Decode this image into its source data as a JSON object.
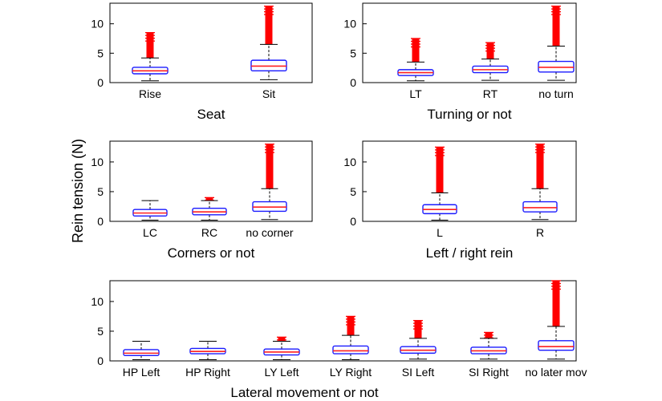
{
  "figure": {
    "ylabel": "Rein tension (N)"
  },
  "chart_data": [
    {
      "type": "box",
      "xlabel": "Seat",
      "ylim": [
        0,
        13.5
      ],
      "yticks": [
        0,
        5,
        10
      ],
      "categories": [
        "Rise",
        "Sit"
      ],
      "boxes": [
        {
          "q1": 1.5,
          "median": 2.0,
          "q3": 2.6,
          "whisker_low": 0.3,
          "whisker_high": 4.2,
          "outlier_max": 8.5
        },
        {
          "q1": 2.0,
          "median": 2.8,
          "q3": 3.8,
          "whisker_low": 0.5,
          "whisker_high": 6.5,
          "outlier_max": 13.0
        }
      ]
    },
    {
      "type": "box",
      "xlabel": "Turning or not",
      "ylim": [
        0,
        13.5
      ],
      "yticks": [
        0,
        5,
        10
      ],
      "categories": [
        "LT",
        "RT",
        "no turn"
      ],
      "boxes": [
        {
          "q1": 1.2,
          "median": 1.7,
          "q3": 2.2,
          "whisker_low": 0.3,
          "whisker_high": 3.5,
          "outlier_max": 7.5
        },
        {
          "q1": 1.7,
          "median": 2.2,
          "q3": 2.8,
          "whisker_low": 0.4,
          "whisker_high": 4.0,
          "outlier_max": 6.8
        },
        {
          "q1": 1.8,
          "median": 2.6,
          "q3": 3.6,
          "whisker_low": 0.4,
          "whisker_high": 6.2,
          "outlier_max": 13.0
        }
      ]
    },
    {
      "type": "box",
      "xlabel": "Corners or not",
      "ylim": [
        0,
        13.5
      ],
      "yticks": [
        0,
        5,
        10
      ],
      "categories": [
        "LC",
        "RC",
        "no corner"
      ],
      "boxes": [
        {
          "q1": 0.9,
          "median": 1.4,
          "q3": 2.0,
          "whisker_low": 0.2,
          "whisker_high": 3.5,
          "outlier_max": null
        },
        {
          "q1": 1.1,
          "median": 1.6,
          "q3": 2.2,
          "whisker_low": 0.2,
          "whisker_high": 3.5,
          "outlier_max": 4.0
        },
        {
          "q1": 1.7,
          "median": 2.4,
          "q3": 3.3,
          "whisker_low": 0.3,
          "whisker_high": 5.5,
          "outlier_max": 13.0
        }
      ]
    },
    {
      "type": "box",
      "xlabel": "Left / right rein",
      "ylim": [
        0,
        13.5
      ],
      "yticks": [
        0,
        5,
        10
      ],
      "categories": [
        "L",
        "R"
      ],
      "boxes": [
        {
          "q1": 1.3,
          "median": 2.0,
          "q3": 2.8,
          "whisker_low": 0.2,
          "whisker_high": 4.8,
          "outlier_max": 12.5
        },
        {
          "q1": 1.6,
          "median": 2.3,
          "q3": 3.3,
          "whisker_low": 0.3,
          "whisker_high": 5.5,
          "outlier_max": 13.0
        }
      ]
    },
    {
      "type": "box",
      "xlabel": "Lateral movement or not",
      "ylim": [
        0,
        13.5
      ],
      "yticks": [
        0,
        5,
        10
      ],
      "categories": [
        "HP Left",
        "HP Right",
        "LY Left",
        "LY Right",
        "SI Left",
        "SI Right",
        "no later mov"
      ],
      "boxes": [
        {
          "q1": 0.9,
          "median": 1.3,
          "q3": 1.9,
          "whisker_low": 0.2,
          "whisker_high": 3.3,
          "outlier_max": null
        },
        {
          "q1": 1.2,
          "median": 1.6,
          "q3": 2.1,
          "whisker_low": 0.2,
          "whisker_high": 3.3,
          "outlier_max": null
        },
        {
          "q1": 1.0,
          "median": 1.5,
          "q3": 2.0,
          "whisker_low": 0.2,
          "whisker_high": 3.3,
          "outlier_max": 4.0
        },
        {
          "q1": 1.2,
          "median": 1.7,
          "q3": 2.5,
          "whisker_low": 0.2,
          "whisker_high": 4.3,
          "outlier_max": 7.5
        },
        {
          "q1": 1.3,
          "median": 1.8,
          "q3": 2.4,
          "whisker_low": 0.3,
          "whisker_high": 3.8,
          "outlier_max": 6.8
        },
        {
          "q1": 1.2,
          "median": 1.7,
          "q3": 2.3,
          "whisker_low": 0.3,
          "whisker_high": 3.8,
          "outlier_max": 4.8
        },
        {
          "q1": 1.8,
          "median": 2.4,
          "q3": 3.4,
          "whisker_low": 0.3,
          "whisker_high": 5.8,
          "outlier_max": 13.5
        }
      ]
    }
  ],
  "colors": {
    "box": "#1a1aff",
    "median": "#ff2020",
    "outlier": "#ff0000",
    "whisker": "#000000",
    "axis": "#000000",
    "background": "#ffffff"
  }
}
